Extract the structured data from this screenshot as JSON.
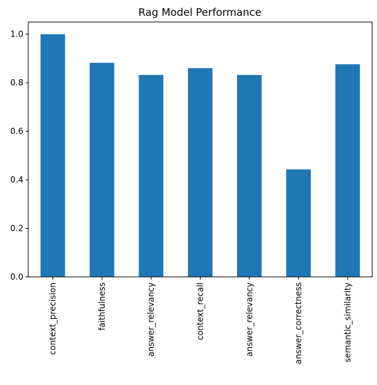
{
  "chart_data": {
    "type": "bar",
    "title": "Rag Model Performance",
    "xlabel": "",
    "ylabel": "",
    "categories": [
      "context_precision",
      "faithfulness",
      "answer_relevancy",
      "context_recall",
      "answer_relevancy",
      "answer_correctness",
      "semantic_similarity"
    ],
    "values": [
      1.0,
      0.882,
      0.832,
      0.86,
      0.832,
      0.443,
      0.876
    ],
    "ylim": [
      0,
      1.05
    ],
    "yticks": [
      0.0,
      0.2,
      0.4,
      0.6,
      0.8,
      1.0
    ],
    "ytick_labels": [
      "0.0",
      "0.2",
      "0.4",
      "0.6",
      "0.8",
      "1.0"
    ],
    "bar_color": "#1f77b4",
    "grid": false,
    "legend": "none"
  }
}
